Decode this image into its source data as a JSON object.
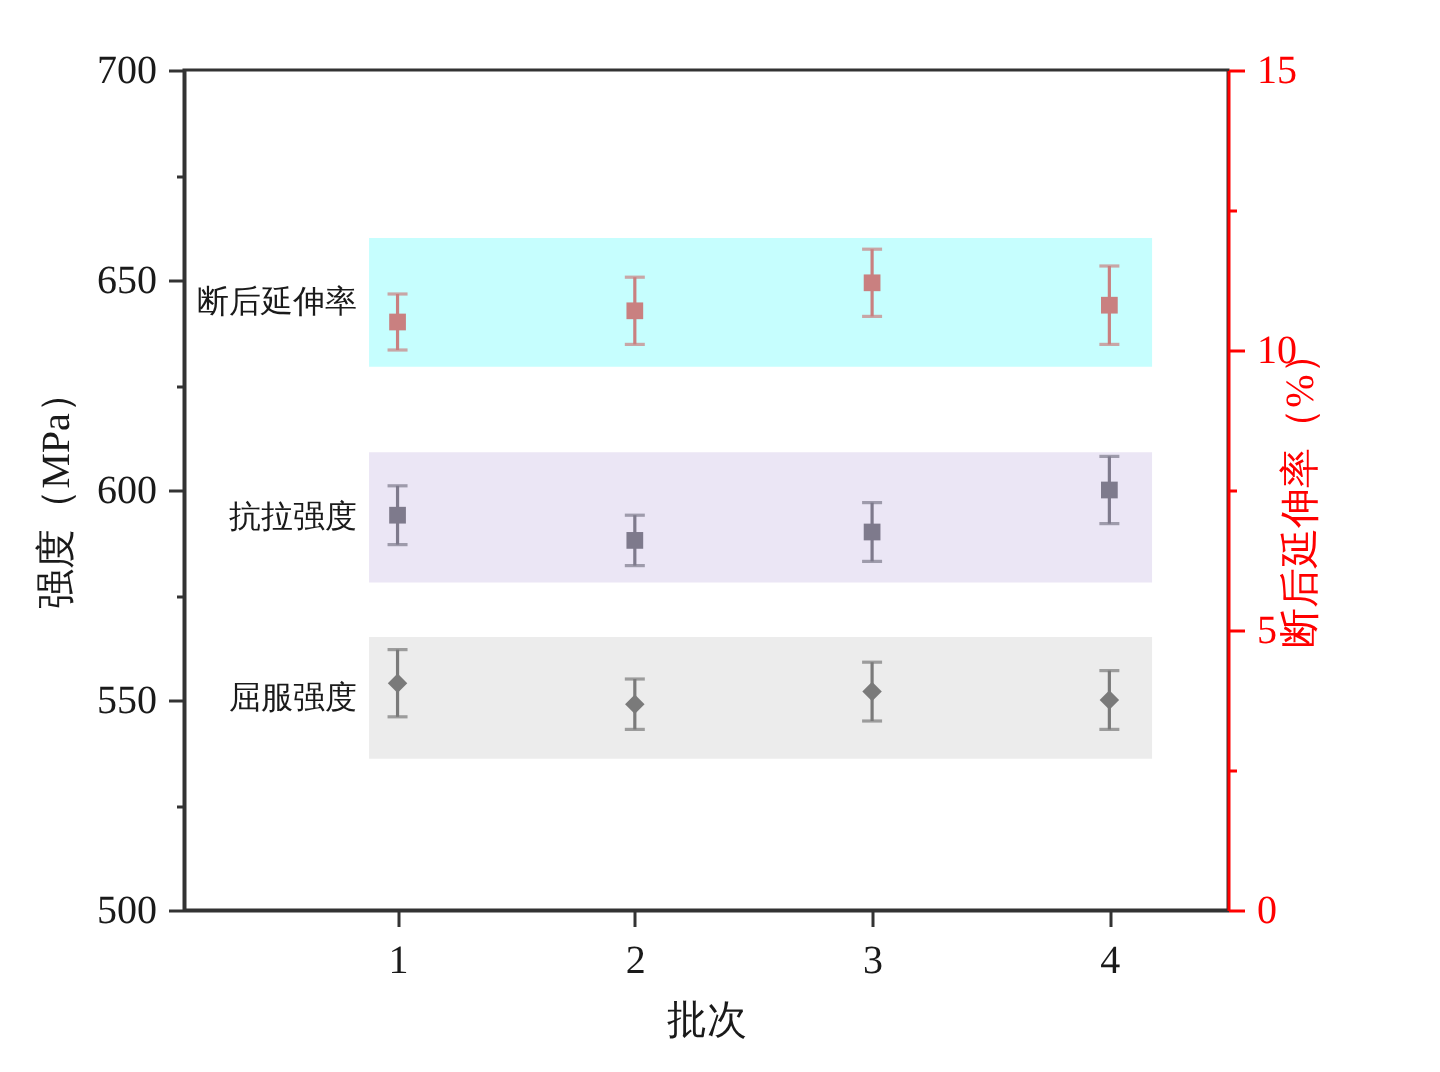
{
  "chart_data": {
    "type": "scatter",
    "xlabel": "批次",
    "ylabel": "强度（MPa）",
    "y2label": "断后延伸率（%）",
    "x": [
      1,
      2,
      3,
      4
    ],
    "xlim": [
      0.1,
      4.5
    ],
    "xticks": [
      1,
      2,
      3,
      4
    ],
    "ylim": [
      500,
      700
    ],
    "yticks": [
      500,
      {
        "value": 525,
        "label": null
      },
      550,
      {
        "value": 575,
        "label": null
      },
      600,
      {
        "value": 625,
        "label": null
      },
      650,
      {
        "value": 675,
        "label": null
      },
      700
    ],
    "y2lim": [
      0,
      15
    ],
    "y2ticks": [
      0,
      {
        "value": 2.5,
        "label": null
      },
      5,
      {
        "value": 7.5,
        "label": null
      },
      10,
      {
        "value": 12.5,
        "label": null
      },
      15
    ],
    "series": [
      {
        "color": "#7a7a7a",
        "marker": "diamond",
        "values": [
          554,
          549,
          552,
          550
        ],
        "errors": [
          8,
          6,
          7,
          7
        ]
      },
      {
        "color": "#7e7a8c",
        "marker": "square",
        "values": [
          594,
          588,
          590,
          600
        ],
        "errors": [
          7,
          6,
          7,
          8
        ]
      },
      {
        "color": "#c98080",
        "marker": "square",
        "axis": "y2",
        "values": [
          10.5,
          10.7,
          11.2,
          10.8
        ],
        "errors": [
          0.5,
          0.6,
          0.6,
          0.7
        ]
      }
    ],
    "bands": [
      {
        "axis": "y",
        "from": 536,
        "to": 565,
        "label": "屈服强度",
        "color": "#ececec"
      },
      {
        "axis": "y",
        "from": 578,
        "to": 609,
        "label": "抗拉强度",
        "color": "#ebe6f5"
      },
      {
        "axis": "y2",
        "from": 9.7,
        "to": 12,
        "label": "断后延伸率",
        "color": "#c6fefe"
      }
    ]
  }
}
